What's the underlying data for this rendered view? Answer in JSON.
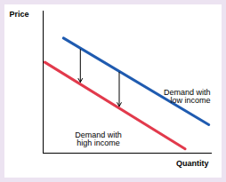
{
  "chart_data": {
    "type": "line",
    "x_label": "Quantity",
    "y_label": "Price",
    "xlim": [
      0,
      10
    ],
    "ylim": [
      0,
      10
    ],
    "xticks": [],
    "yticks": [],
    "tick_labels": false,
    "grid": false,
    "series": [
      {
        "name": "Demand with\nlow income",
        "color": "#1f5bb0",
        "x": [
          1.2,
          9.8
        ],
        "values": [
          8.1,
          2.0
        ]
      },
      {
        "name": "Demand with\nhigh income",
        "color": "#e23a4c",
        "x": [
          0.1,
          8.4
        ],
        "values": [
          6.4,
          0.3
        ]
      }
    ],
    "arrows": [
      {
        "x": 2.2,
        "from": 7.3,
        "to": 5.0
      },
      {
        "x": 4.5,
        "from": 5.7,
        "to": 3.3
      }
    ]
  }
}
